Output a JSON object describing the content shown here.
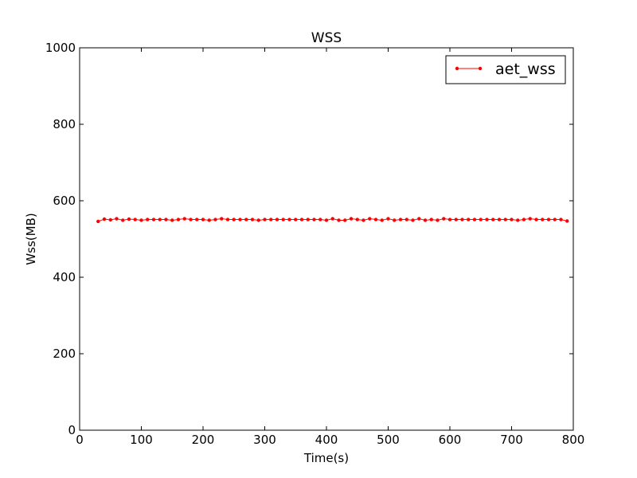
{
  "chart_data": {
    "type": "line",
    "title": "WSS",
    "xlabel": "Time(s)",
    "ylabel": "Wss(MB)",
    "xlim": [
      0,
      800
    ],
    "ylim": [
      0,
      1000
    ],
    "xticks": [
      0,
      100,
      200,
      300,
      400,
      500,
      600,
      700,
      800
    ],
    "yticks": [
      0,
      200,
      400,
      600,
      800,
      1000
    ],
    "xtick_labels": [
      "0",
      "100",
      "200",
      "300",
      "400",
      "500",
      "600",
      "700",
      "800"
    ],
    "ytick_labels": [
      "0",
      "200",
      "400",
      "600",
      "800",
      "1000"
    ],
    "grid": false,
    "legend_position": "top-right",
    "series": [
      {
        "name": "aet_wss",
        "color": "#ff0000",
        "marker": "point",
        "x": [
          30,
          40,
          50,
          60,
          70,
          80,
          90,
          100,
          110,
          120,
          130,
          140,
          150,
          160,
          170,
          180,
          190,
          200,
          210,
          220,
          230,
          240,
          250,
          260,
          270,
          280,
          290,
          300,
          310,
          320,
          330,
          340,
          350,
          360,
          370,
          380,
          390,
          400,
          410,
          420,
          430,
          440,
          450,
          460,
          470,
          480,
          490,
          500,
          510,
          520,
          530,
          540,
          550,
          560,
          570,
          580,
          590,
          600,
          610,
          620,
          630,
          640,
          650,
          660,
          670,
          680,
          690,
          700,
          710,
          720,
          730,
          740,
          750,
          760,
          770,
          780,
          790
        ],
        "y": [
          546,
          552,
          550,
          553,
          549,
          552,
          551,
          549,
          551,
          551,
          551,
          551,
          549,
          551,
          553,
          551,
          551,
          551,
          549,
          551,
          553,
          551,
          551,
          551,
          551,
          551,
          549,
          551,
          551,
          551,
          551,
          551,
          551,
          551,
          551,
          551,
          551,
          549,
          553,
          549,
          549,
          553,
          551,
          549,
          553,
          551,
          549,
          553,
          549,
          551,
          551,
          549,
          553,
          549,
          551,
          549,
          553,
          551,
          551,
          551,
          551,
          551,
          551,
          551,
          551,
          551,
          551,
          551,
          549,
          551,
          553,
          551,
          551,
          551,
          551,
          551,
          547
        ]
      }
    ]
  }
}
